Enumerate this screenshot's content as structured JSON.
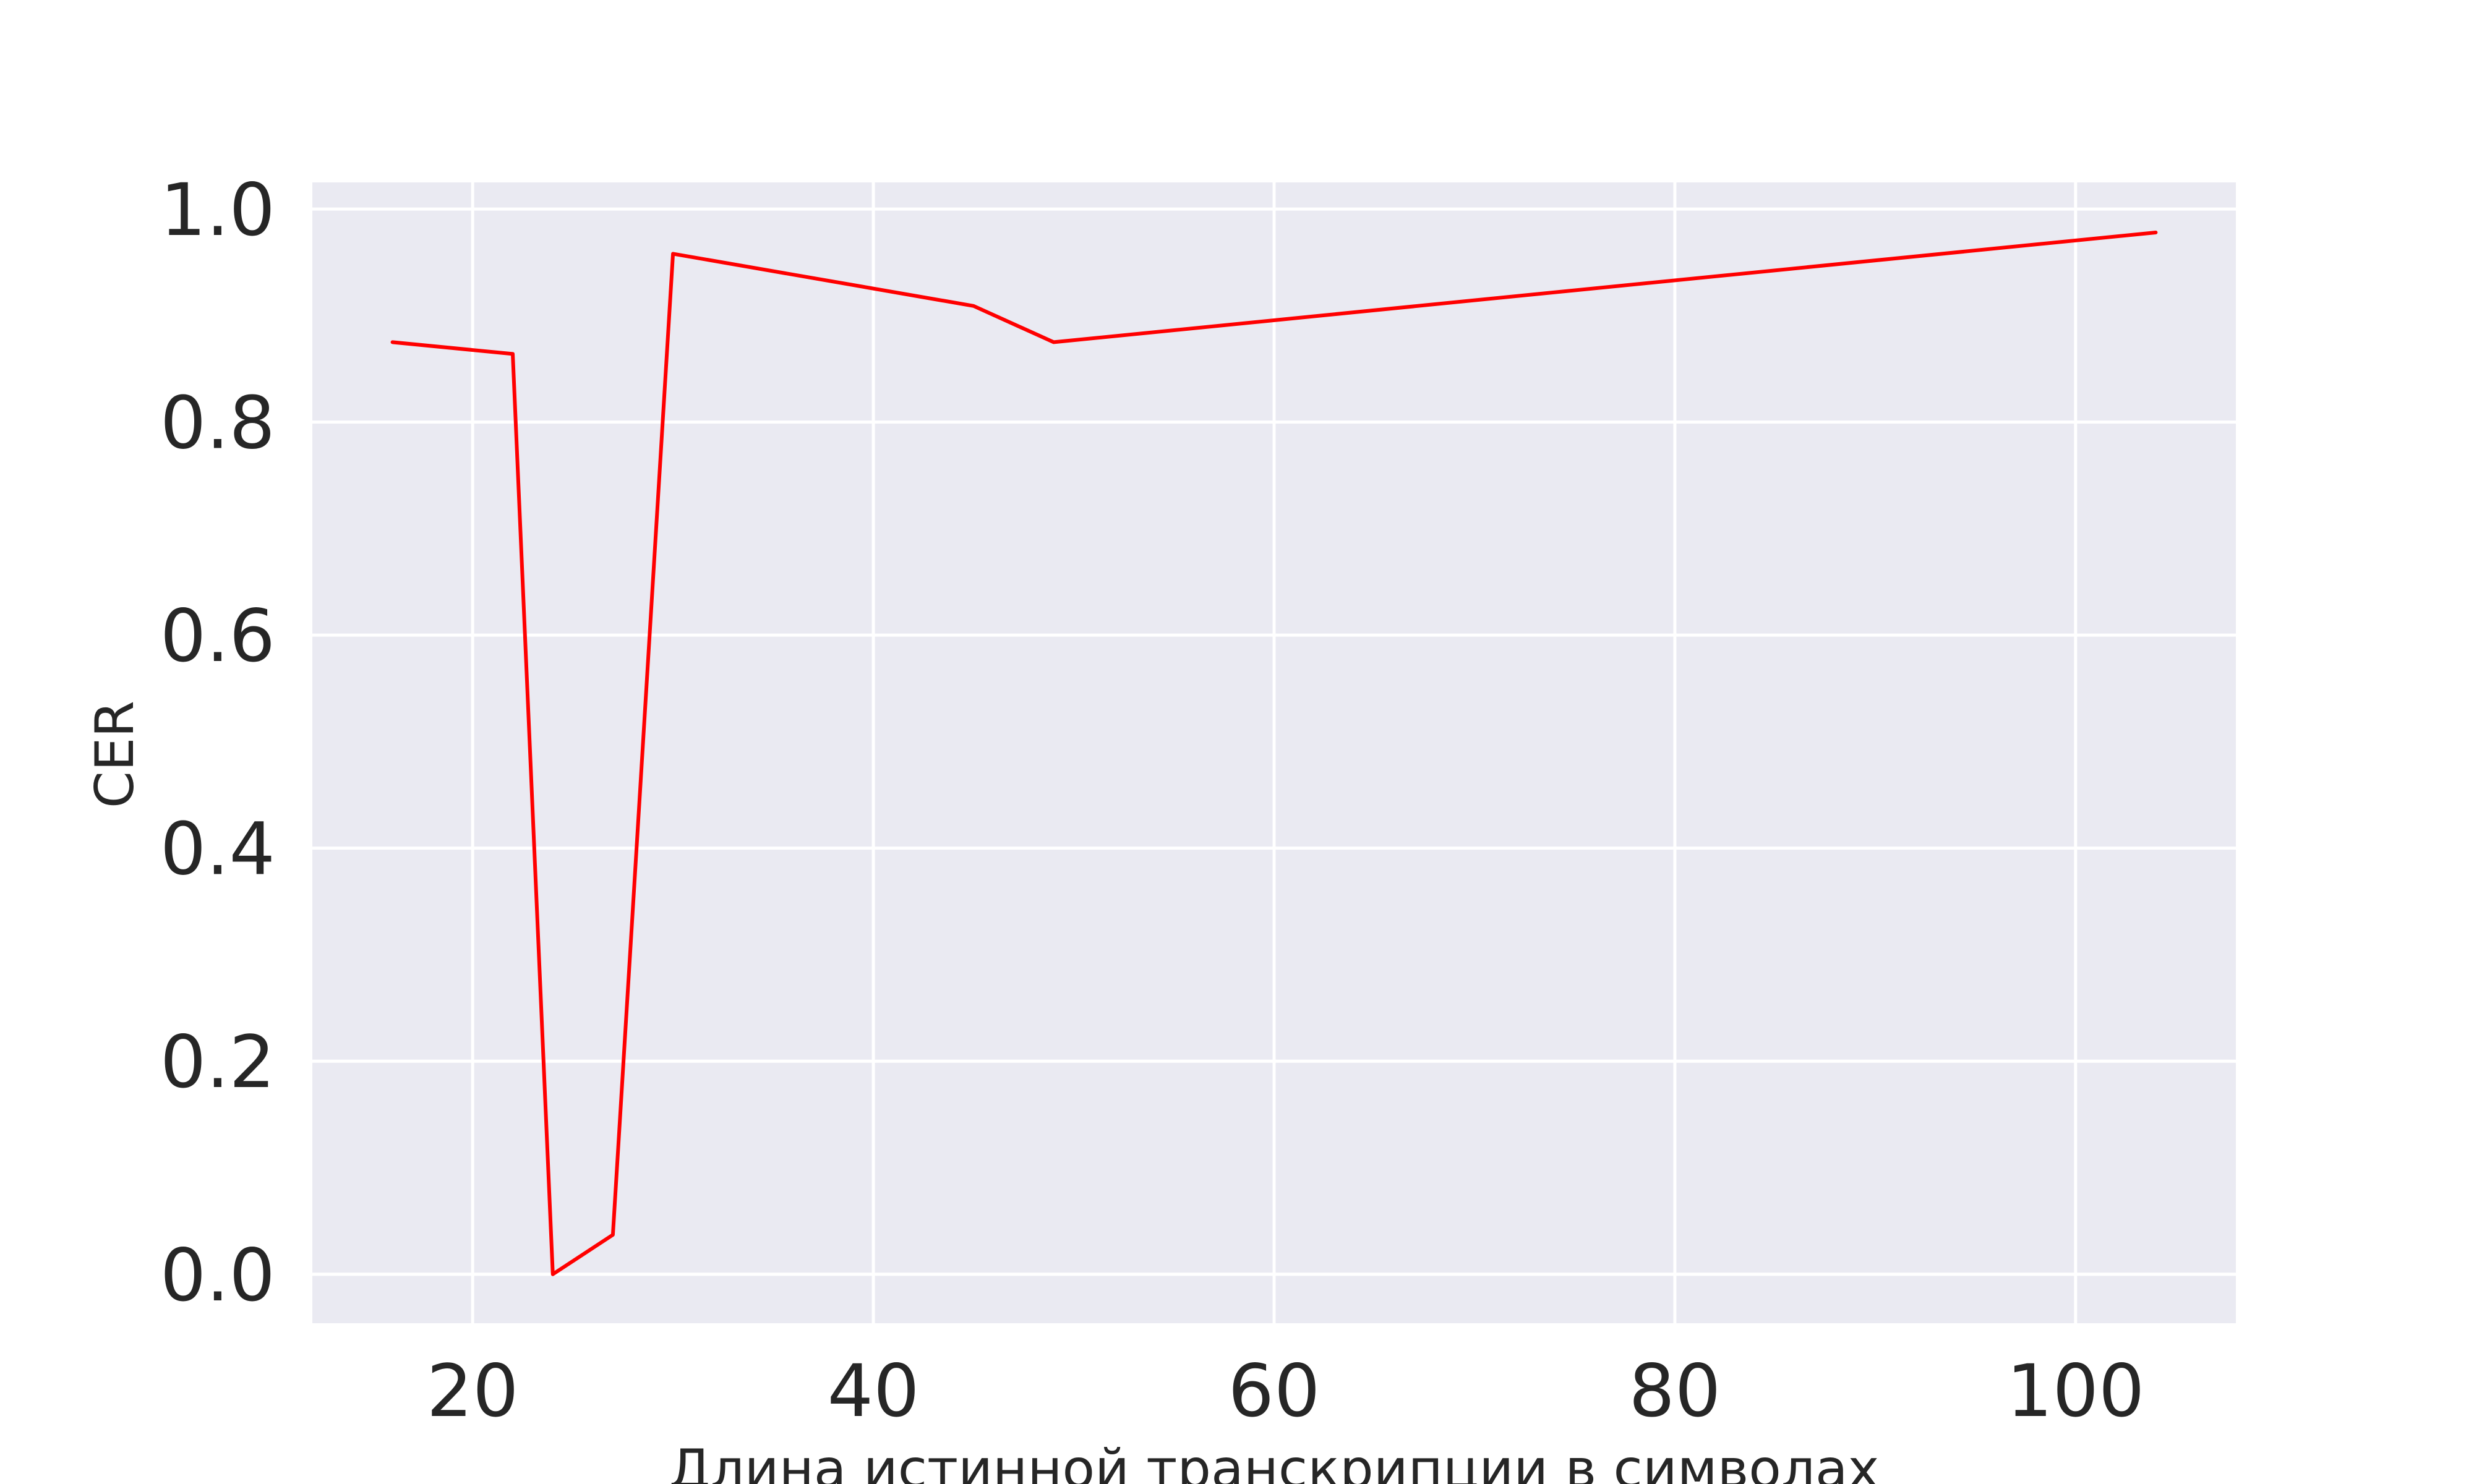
{
  "colors": {
    "background": "#ffffff",
    "plot_background": "#eaeaf2",
    "grid": "#ffffff",
    "line": "#ff0000",
    "text": "#262626"
  },
  "chart_data": {
    "type": "line",
    "title": "",
    "xlabel": "Длина истинной транскрипции в символах",
    "ylabel": "CER",
    "xlim": [
      12,
      108
    ],
    "ylim": [
      -0.046,
      1.025
    ],
    "xticks": [
      20,
      40,
      60,
      80,
      100
    ],
    "xtick_labels": [
      "20",
      "40",
      "60",
      "80",
      "100"
    ],
    "yticks": [
      0.0,
      0.2,
      0.4,
      0.6,
      0.8,
      1.0
    ],
    "ytick_labels": [
      "0.0",
      "0.2",
      "0.4",
      "0.6",
      "0.8",
      "1.0"
    ],
    "grid": true,
    "legend": "none",
    "series": [
      {
        "x": [
          16,
          22,
          24,
          27,
          30,
          45,
          49,
          104
        ],
        "y": [
          0.875,
          0.864,
          0.0,
          0.037,
          0.958,
          0.909,
          0.875,
          0.978
        ]
      }
    ]
  }
}
